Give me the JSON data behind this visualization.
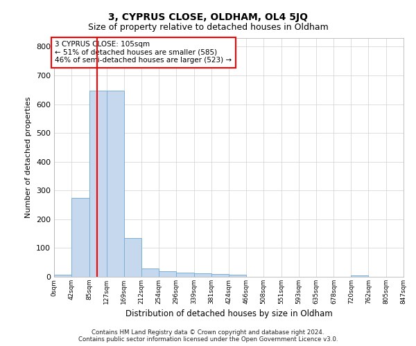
{
  "title": "3, CYPRUS CLOSE, OLDHAM, OL4 5JQ",
  "subtitle": "Size of property relative to detached houses in Oldham",
  "xlabel": "Distribution of detached houses by size in Oldham",
  "ylabel": "Number of detached properties",
  "annotation_line1": "3 CYPRUS CLOSE: 105sqm",
  "annotation_line2": "← 51% of detached houses are smaller (585)",
  "annotation_line3": "46% of semi-detached houses are larger (523) →",
  "bin_edges": [
    0,
    42,
    85,
    127,
    169,
    212,
    254,
    296,
    339,
    381,
    424,
    466,
    508,
    551,
    593,
    635,
    678,
    720,
    762,
    805,
    847
  ],
  "bin_counts": [
    8,
    275,
    648,
    648,
    135,
    30,
    20,
    15,
    12,
    10,
    8,
    0,
    0,
    0,
    0,
    0,
    0,
    5,
    0,
    0
  ],
  "bar_color": "#c5d8ee",
  "bar_edge_color": "#7aafd4",
  "vline_color": "red",
  "vline_x": 105,
  "grid_color": "#d0d0d0",
  "footer_line1": "Contains HM Land Registry data © Crown copyright and database right 2024.",
  "footer_line2": "Contains public sector information licensed under the Open Government Licence v3.0.",
  "ylim": [
    0,
    830
  ],
  "xlim": [
    0,
    847
  ],
  "yticks": [
    0,
    100,
    200,
    300,
    400,
    500,
    600,
    700,
    800
  ],
  "tick_labels": [
    "0sqm",
    "42sqm",
    "85sqm",
    "127sqm",
    "169sqm",
    "212sqm",
    "254sqm",
    "296sqm",
    "339sqm",
    "381sqm",
    "424sqm",
    "466sqm",
    "508sqm",
    "551sqm",
    "593sqm",
    "635sqm",
    "678sqm",
    "720sqm",
    "762sqm",
    "805sqm",
    "847sqm"
  ]
}
